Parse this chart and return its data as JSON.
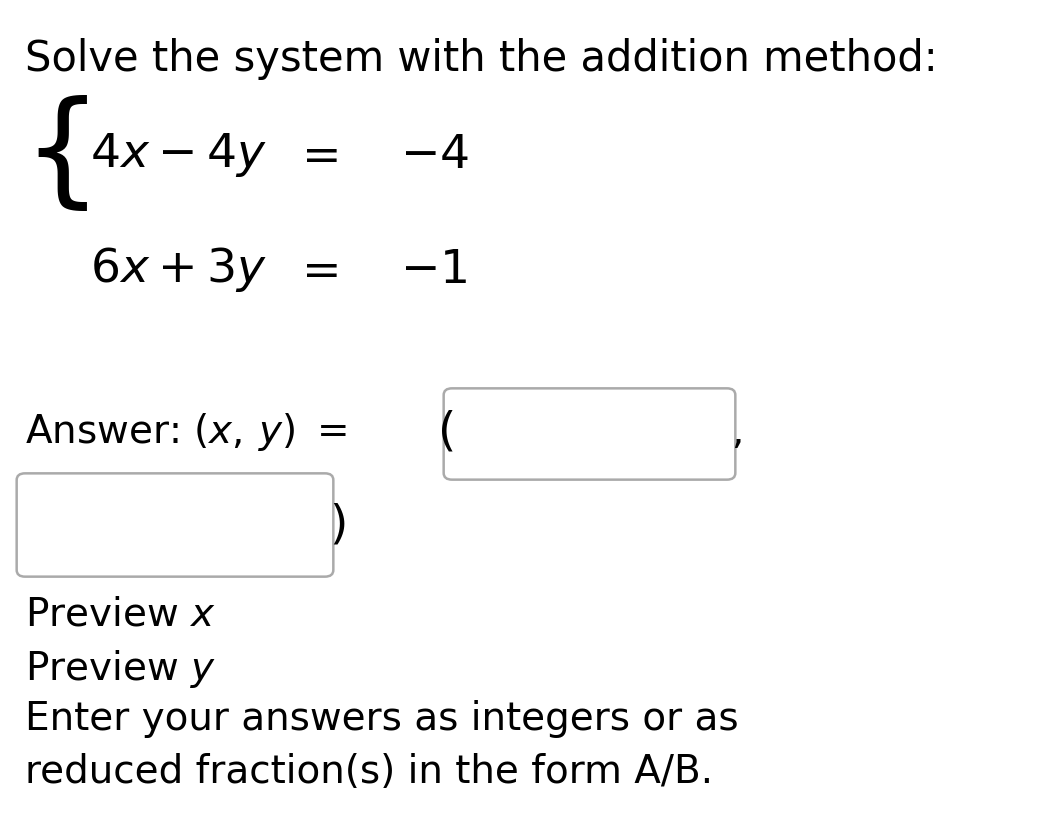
{
  "bg_color": "#ffffff",
  "text_color": "#000000",
  "box_color": "#aaaaaa",
  "title": "Solve the system with the addition method:",
  "title_fontsize": 30,
  "eq_fontsize": 34,
  "brace_fontsize": 90,
  "answer_fontsize": 28,
  "preview_fontsize": 28,
  "footer_fontsize": 28,
  "fig_width": 10.42,
  "fig_height": 8.31,
  "dpi": 100
}
